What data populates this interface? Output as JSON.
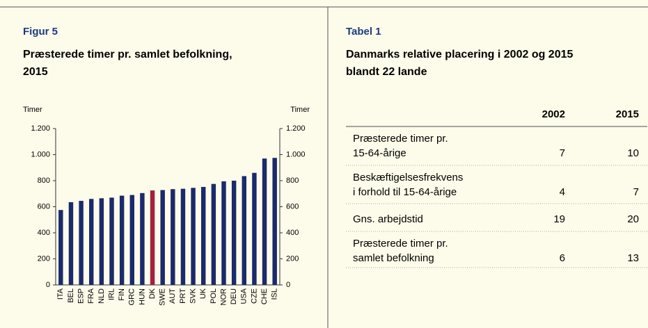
{
  "chart_data": {
    "type": "bar",
    "label": "Figur 5",
    "title": [
      "Præsterede timer pr. samlet befolkning,",
      "2015"
    ],
    "ylabel": "Timer",
    "y2label": "Timer",
    "categories": [
      "ITA",
      "BEL",
      "ESP",
      "FRA",
      "NLD",
      "IRL",
      "FIN",
      "GRC",
      "HUN",
      "DK",
      "SWE",
      "AUT",
      "PRT",
      "SVK",
      "UK",
      "POL",
      "NOR",
      "DEU",
      "USA",
      "CZE",
      "CHE",
      "ISL"
    ],
    "values": [
      575,
      635,
      645,
      660,
      665,
      670,
      685,
      690,
      705,
      725,
      728,
      735,
      738,
      745,
      752,
      775,
      795,
      800,
      835,
      860,
      970,
      975
    ],
    "colors": [
      "#1b2a6b",
      "#1b2a6b",
      "#1b2a6b",
      "#1b2a6b",
      "#1b2a6b",
      "#1b2a6b",
      "#1b2a6b",
      "#1b2a6b",
      "#1b2a6b",
      "#a3203c",
      "#1b2a6b",
      "#1b2a6b",
      "#1b2a6b",
      "#1b2a6b",
      "#1b2a6b",
      "#1b2a6b",
      "#1b2a6b",
      "#1b2a6b",
      "#1b2a6b",
      "#1b2a6b",
      "#1b2a6b",
      "#1b2a6b"
    ],
    "ylim": [
      0,
      1200
    ],
    "yticks": [
      0,
      200,
      400,
      600,
      800,
      {
        "value": 1000,
        "label": "1.000"
      },
      {
        "value": 1200,
        "label": "1.200"
      }
    ],
    "y2lim": [
      0,
      1200
    ],
    "y2ticks": [
      0,
      200,
      400,
      600,
      800,
      {
        "value": 1000,
        "label": "1.000"
      },
      {
        "value": 1200,
        "label": "1.200"
      }
    ]
  },
  "table": {
    "label": "Tabel 1",
    "title": [
      "Danmarks relative placering i 2002 og 2015",
      "blandt 22 lande"
    ],
    "columns": [
      "2002",
      "2015"
    ],
    "rows": [
      {
        "label": [
          "Præsterede timer pr.",
          "15-64-årige"
        ],
        "values": [
          7,
          10
        ]
      },
      {
        "label": [
          "Beskæftigelsesfrekvens",
          "i forhold til 15-64-årige"
        ],
        "values": [
          4,
          7
        ]
      },
      {
        "label": [
          "Gns. arbejdstid"
        ],
        "values": [
          19,
          20
        ]
      },
      {
        "label": [
          "Præsterede timer pr.",
          "samlet befolkning"
        ],
        "values": [
          6,
          13
        ]
      }
    ]
  }
}
